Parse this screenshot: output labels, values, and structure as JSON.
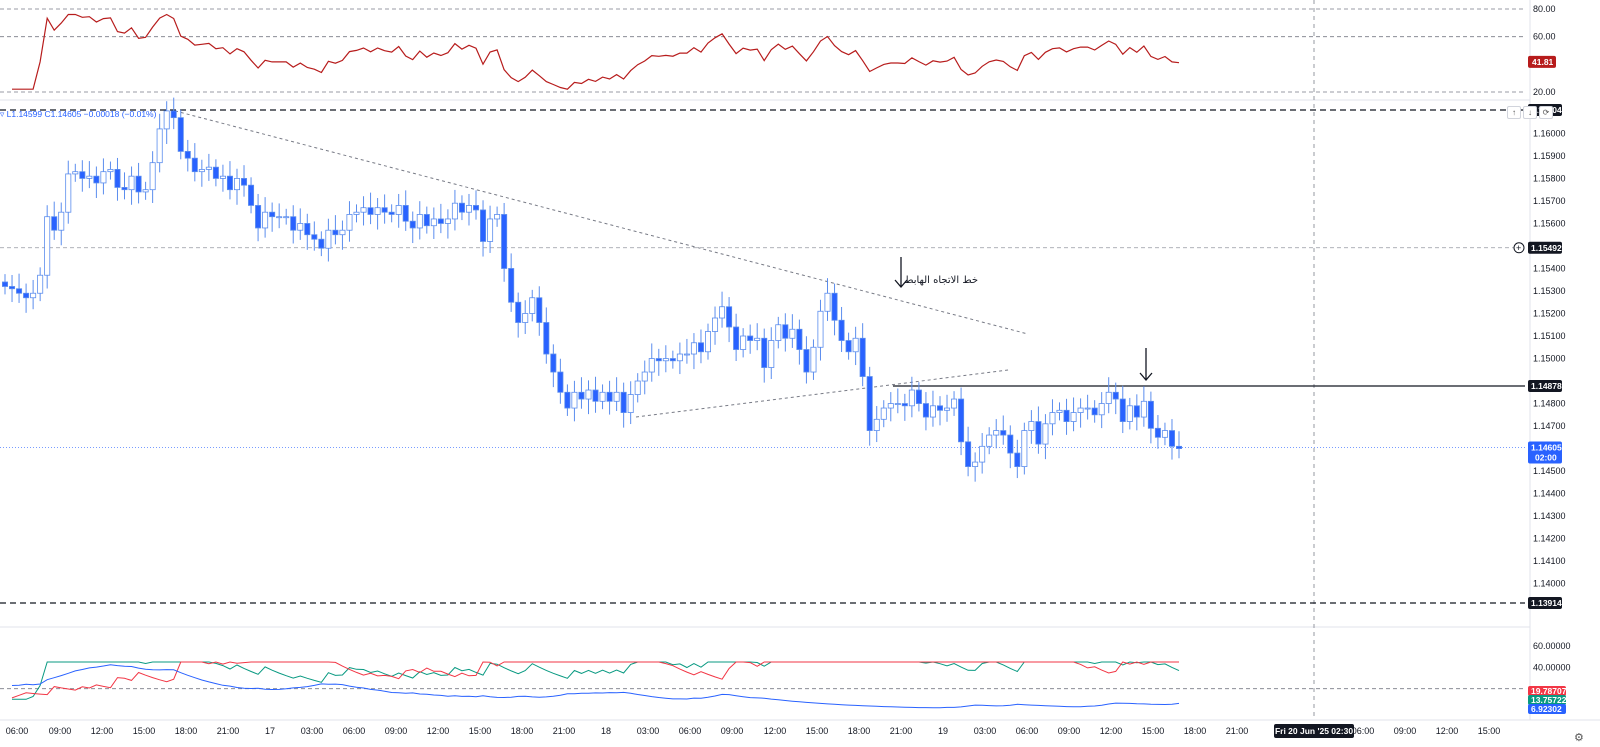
{
  "header": {
    "ohlc_text": "▿ L1.14599 C1.14605 −0.00018 (−0.01%)"
  },
  "price_scale_ticks": [
    "1.16000",
    "1.15900",
    "1.15800",
    "1.15700",
    "1.15600",
    "1.15400",
    "1.15300",
    "1.15200",
    "1.15100",
    "1.15000",
    "1.14800",
    "1.14700",
    "1.14500",
    "1.14400",
    "1.14300",
    "1.14200",
    "1.14100",
    "1.14000"
  ],
  "price_tags": {
    "top_level": "1.16104",
    "upper_level": "1.15492",
    "horizontal_line": "1.14878",
    "current_price": "1.14605",
    "current_countdown": "02:00",
    "bottom_level": "1.13914"
  },
  "rsi": {
    "ticks": [
      "80.00",
      "60.00",
      "20.00"
    ],
    "value_tag": "41.81",
    "color": "#b71c1c"
  },
  "dmi": {
    "ticks": [
      "60.00000",
      "40.00000"
    ],
    "tags": [
      {
        "value": "19.78707",
        "color": "#f23645"
      },
      {
        "value": "13.75722",
        "color": "#089981"
      },
      {
        "value": "6.92302",
        "color": "#2962ff"
      }
    ]
  },
  "time_axis": {
    "labels": [
      "06:00",
      "09:00",
      "12:00",
      "15:00",
      "18:00",
      "21:00",
      "17",
      "03:00",
      "06:00",
      "09:00",
      "12:00",
      "15:00",
      "18:00",
      "21:00",
      "18",
      "03:00",
      "06:00",
      "09:00",
      "12:00",
      "15:00",
      "18:00",
      "21:00",
      "19",
      "03:00",
      "06:00",
      "09:00",
      "12:00",
      "15:00",
      "18:00",
      "21:00",
      "06:00",
      "09:00",
      "12:00",
      "15:00"
    ],
    "crosshair_label": "Fri 20 Jun '25  02:30"
  },
  "annotation": {
    "text": "خط الاتجاه الهابط"
  },
  "buttons": {
    "up": "↑",
    "down": "↓",
    "reset": "⟳"
  },
  "settings_icon": "⚙",
  "chart_data": {
    "type": "candlestick",
    "symbol_timeframe": "30 minute",
    "candle_color_up": "#ffffff",
    "candle_color_down": "#2962ff",
    "candle_border": "#5b8dee",
    "closes": [
      1.1532,
      1.1531,
      1.1529,
      1.1527,
      1.1529,
      1.1537,
      1.1563,
      1.1557,
      1.1565,
      1.1582,
      1.1583,
      1.158,
      1.1581,
      1.1578,
      1.1583,
      1.1584,
      1.1576,
      1.1575,
      1.1581,
      1.1574,
      1.1575,
      1.1587,
      1.1602,
      1.161,
      1.1607,
      1.1592,
      1.1589,
      1.1583,
      1.1584,
      1.1585,
      1.158,
      1.1581,
      1.1575,
      1.158,
      1.1577,
      1.1568,
      1.1558,
      1.1565,
      1.1563,
      1.1563,
      1.1563,
      1.1557,
      1.156,
      1.1555,
      1.1553,
      1.1549,
      1.1557,
      1.1555,
      1.1557,
      1.1564,
      1.1565,
      1.1567,
      1.1564,
      1.1567,
      1.1565,
      1.1564,
      1.1568,
      1.1561,
      1.1558,
      1.1564,
      1.1559,
      1.1562,
      1.156,
      1.1562,
      1.1569,
      1.1565,
      1.1568,
      1.1566,
      1.1552,
      1.1562,
      1.1564,
      1.154,
      1.1525,
      1.1516,
      1.152,
      1.1527,
      1.1516,
      1.1502,
      1.1494,
      1.1485,
      1.1478,
      1.1485,
      1.1482,
      1.1486,
      1.1481,
      1.1485,
      1.1481,
      1.1485,
      1.1476,
      1.1484,
      1.149,
      1.1494,
      1.15,
      1.1499,
      1.15,
      1.1499,
      1.1502,
      1.1502,
      1.1507,
      1.1503,
      1.1512,
      1.1518,
      1.1523,
      1.1514,
      1.1504,
      1.151,
      1.1508,
      1.1509,
      1.1496,
      1.1508,
      1.1515,
      1.1509,
      1.1513,
      1.1504,
      1.1494,
      1.1505,
      1.1521,
      1.1529,
      1.1517,
      1.1508,
      1.1503,
      1.1509,
      1.1492,
      1.1468,
      1.1473,
      1.1478,
      1.148,
      1.148,
      1.1479,
      1.1486,
      1.148,
      1.1474,
      1.1479,
      1.1477,
      1.1478,
      1.1482,
      1.1463,
      1.1452,
      1.1454,
      1.1461,
      1.1466,
      1.1468,
      1.1466,
      1.1458,
      1.1452,
      1.1468,
      1.1472,
      1.1462,
      1.1471,
      1.1476,
      1.1477,
      1.1472,
      1.1476,
      1.1478,
      1.1478,
      1.1475,
      1.148,
      1.1485,
      1.1482,
      1.1472,
      1.1479,
      1.1474,
      1.1481,
      1.1469,
      1.1465,
      1.1468,
      1.1461,
      1.146
    ],
    "current_price": 1.14605,
    "levels": [
      1.16104,
      1.15492,
      1.14878,
      1.13914
    ],
    "price_range": [
      1.1386,
      1.162
    ],
    "trendlines": [
      {
        "label": "خط الاتجاه الهابط",
        "from": [
          1.161
        ],
        "to": [
          1.1511
        ]
      },
      {
        "from": [
          1.1474
        ],
        "to": [
          1.1495
        ]
      }
    ],
    "rsi_range": [
      10,
      86
    ],
    "dmi_range": [
      0,
      70
    ],
    "dmi_last": {
      "plus_di": 13.75722,
      "minus_di": 19.78707,
      "adx": 6.92302
    }
  }
}
